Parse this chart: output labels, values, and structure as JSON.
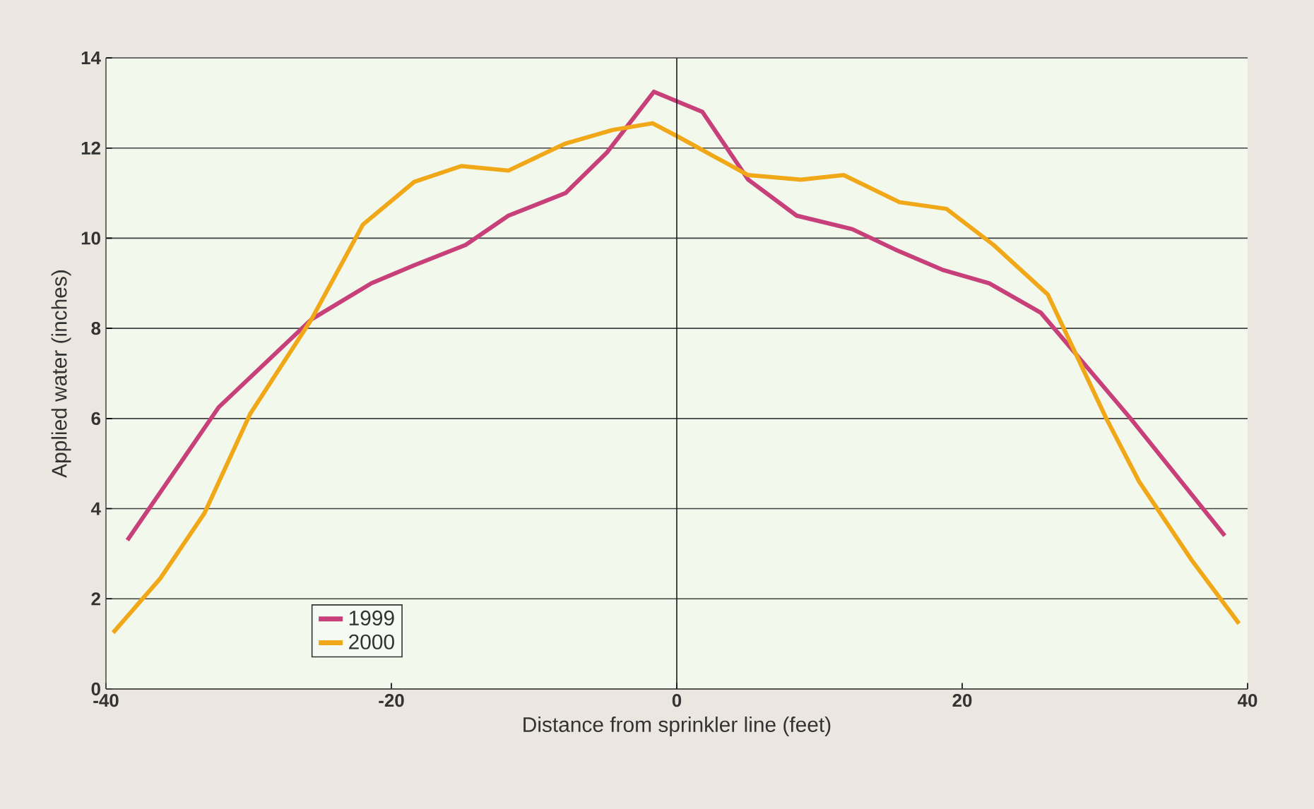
{
  "chart_data": {
    "type": "line",
    "xlabel": "Distance from sprinkler line (feet)",
    "ylabel": "Applied water (inches)",
    "xlim": [
      -40,
      40
    ],
    "xticks": [
      -40,
      -20,
      0,
      20,
      40
    ],
    "ylim": [
      0,
      14
    ],
    "yticks": [
      0,
      2,
      4,
      6,
      8,
      10,
      12,
      14
    ],
    "grid": "y",
    "legend": "bottom left",
    "line_style": "solid",
    "marker": "none",
    "ref_lines": [
      {
        "axis": "x",
        "value": 0,
        "color": "#1a1a1a"
      }
    ],
    "series": [
      {
        "name": "1999",
        "color": "#c8407a",
        "x": [
          -38.5,
          -32.1,
          -25.6,
          -21.4,
          -18.4,
          -14.8,
          -11.8,
          -7.8,
          -4.9,
          -1.6,
          1.8,
          5.0,
          8.4,
          12.3,
          15.3,
          18.6,
          21.9,
          25.5,
          31.8,
          38.4
        ],
        "values": [
          3.3,
          6.25,
          8.2,
          9.0,
          9.4,
          9.85,
          10.5,
          11.0,
          11.9,
          13.25,
          12.8,
          11.3,
          10.5,
          10.2,
          9.75,
          9.3,
          9.0,
          8.35,
          6.0,
          3.4
        ]
      },
      {
        "name": "2000",
        "color": "#f0a818",
        "x": [
          -39.5,
          -36.2,
          -33.1,
          -29.9,
          -25.6,
          -22.0,
          -18.4,
          -15.1,
          -11.8,
          -7.8,
          -4.5,
          -1.7,
          0.1,
          5.0,
          8.7,
          11.7,
          15.6,
          18.9,
          22.2,
          26.0,
          30.1,
          32.4,
          36.1,
          39.4
        ],
        "values": [
          1.25,
          2.45,
          3.9,
          6.1,
          8.2,
          10.3,
          11.25,
          11.6,
          11.5,
          12.1,
          12.4,
          12.55,
          12.25,
          11.4,
          11.3,
          11.4,
          10.8,
          10.65,
          9.85,
          8.75,
          6.0,
          4.6,
          2.85,
          1.45
        ]
      }
    ]
  }
}
